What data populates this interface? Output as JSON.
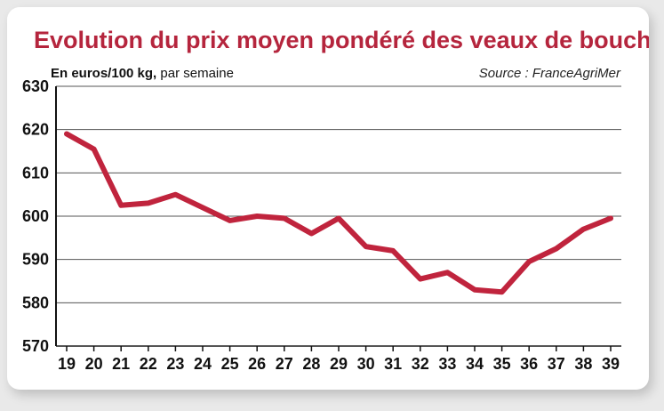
{
  "chart_data": {
    "type": "line",
    "title": "Evolution du prix moyen pondéré des veaux de boucherie",
    "unit_label": "En euros/100 kg,",
    "unit_suffix": " par semaine",
    "source": "Source : FranceAgriMer",
    "x": [
      "19",
      "20",
      "21",
      "22",
      "23",
      "24",
      "25",
      "26",
      "27",
      "28",
      "29",
      "30",
      "31",
      "32",
      "33",
      "34",
      "35",
      "36",
      "37",
      "38",
      "39"
    ],
    "values": [
      619,
      615.5,
      602.5,
      603,
      605,
      602,
      599,
      600,
      599.5,
      596,
      599.5,
      593,
      592,
      585.5,
      587,
      583,
      582.5,
      589.5,
      592.5,
      597,
      599.5
    ],
    "ylim": [
      570,
      630
    ],
    "yticks": [
      570,
      580,
      590,
      600,
      610,
      620,
      630
    ],
    "grid": true,
    "line_color": "#c0243d",
    "title_color": "#b5253d"
  }
}
